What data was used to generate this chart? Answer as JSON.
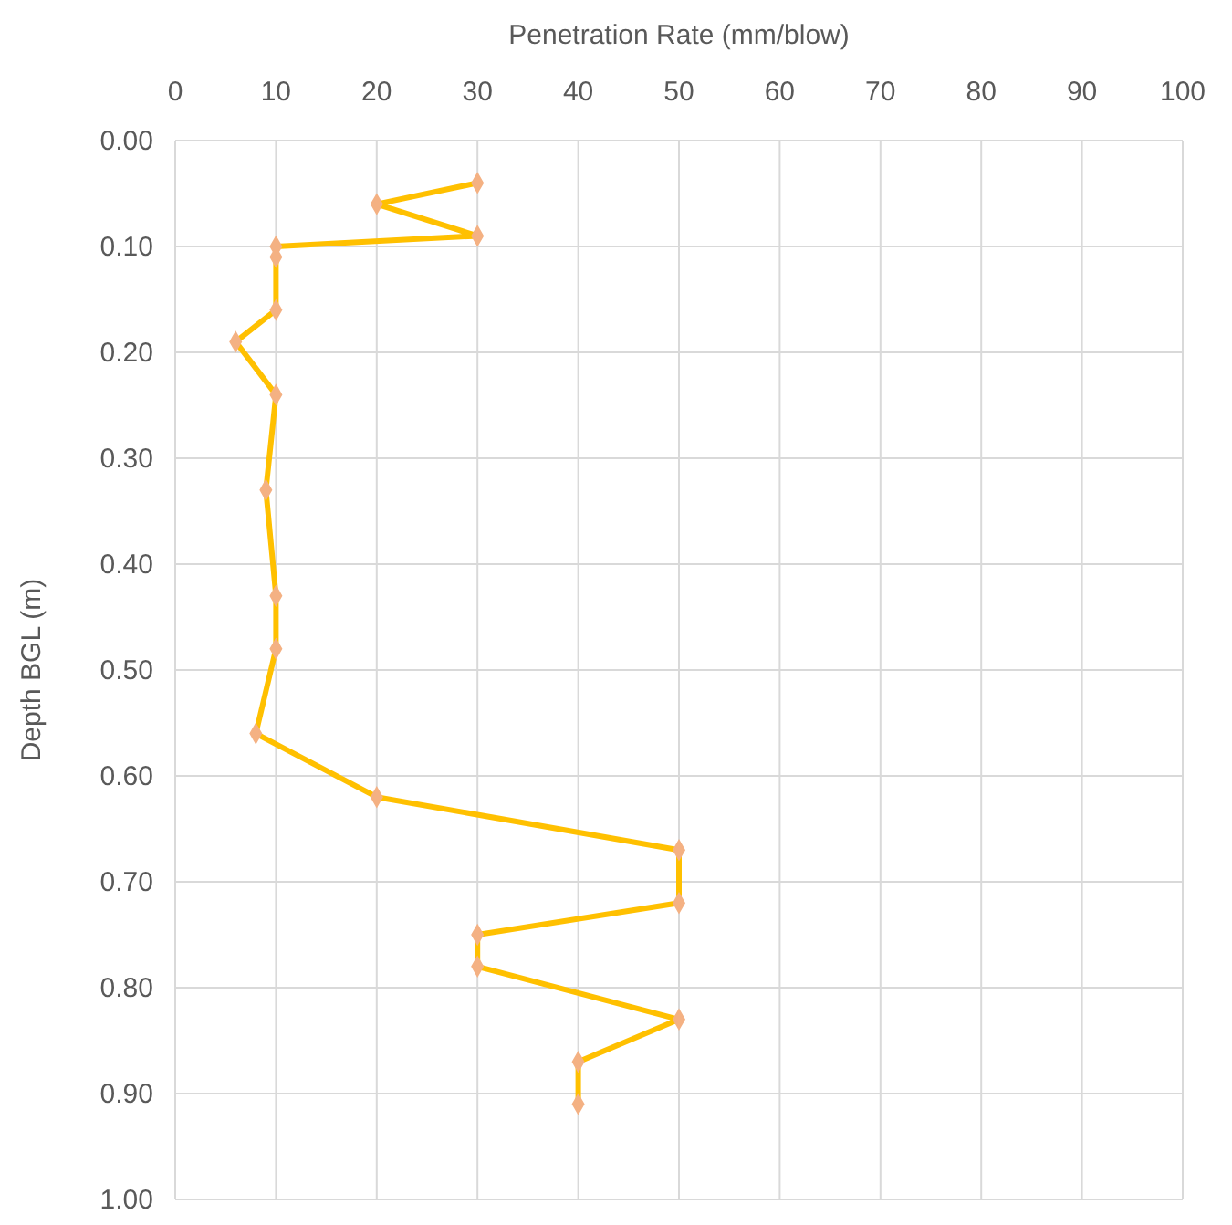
{
  "chart_data": {
    "type": "line",
    "xlabel": "Penetration Rate (mm/blow)",
    "ylabel": "Depth BGL (m)",
    "xlim": [
      0,
      100
    ],
    "xticks": [
      0,
      10,
      20,
      30,
      40,
      50,
      60,
      70,
      80,
      90,
      100
    ],
    "ylim": [
      1,
      0
    ],
    "yticks": [
      {
        "value": 0,
        "label": "0.00"
      },
      {
        "value": 0.1,
        "label": "0.10"
      },
      {
        "value": 0.2,
        "label": "0.20"
      },
      {
        "value": 0.3,
        "label": "0.30"
      },
      {
        "value": 0.4,
        "label": "0.40"
      },
      {
        "value": 0.5,
        "label": "0.50"
      },
      {
        "value": 0.6,
        "label": "0.60"
      },
      {
        "value": 0.7,
        "label": "0.70"
      },
      {
        "value": 0.8,
        "label": "0.80"
      },
      {
        "value": 0.9,
        "label": "0.90"
      },
      {
        "value": 1,
        "label": "1.00"
      }
    ],
    "grid": true,
    "marker": "diamond",
    "line_style": "solid",
    "series": [
      {
        "color": "#ffc000",
        "x": [
          30,
          20,
          30,
          10,
          10,
          10,
          6,
          10,
          9,
          10,
          10,
          8,
          20,
          50,
          50,
          30,
          30,
          50,
          40,
          40
        ],
        "values": [
          0.04,
          0.06,
          0.09,
          0.1,
          0.11,
          0.16,
          0.19,
          0.24,
          0.33,
          0.43,
          0.48,
          0.56,
          0.62,
          0.67,
          0.72,
          0.75,
          0.78,
          0.83,
          0.87,
          0.91
        ]
      }
    ]
  }
}
